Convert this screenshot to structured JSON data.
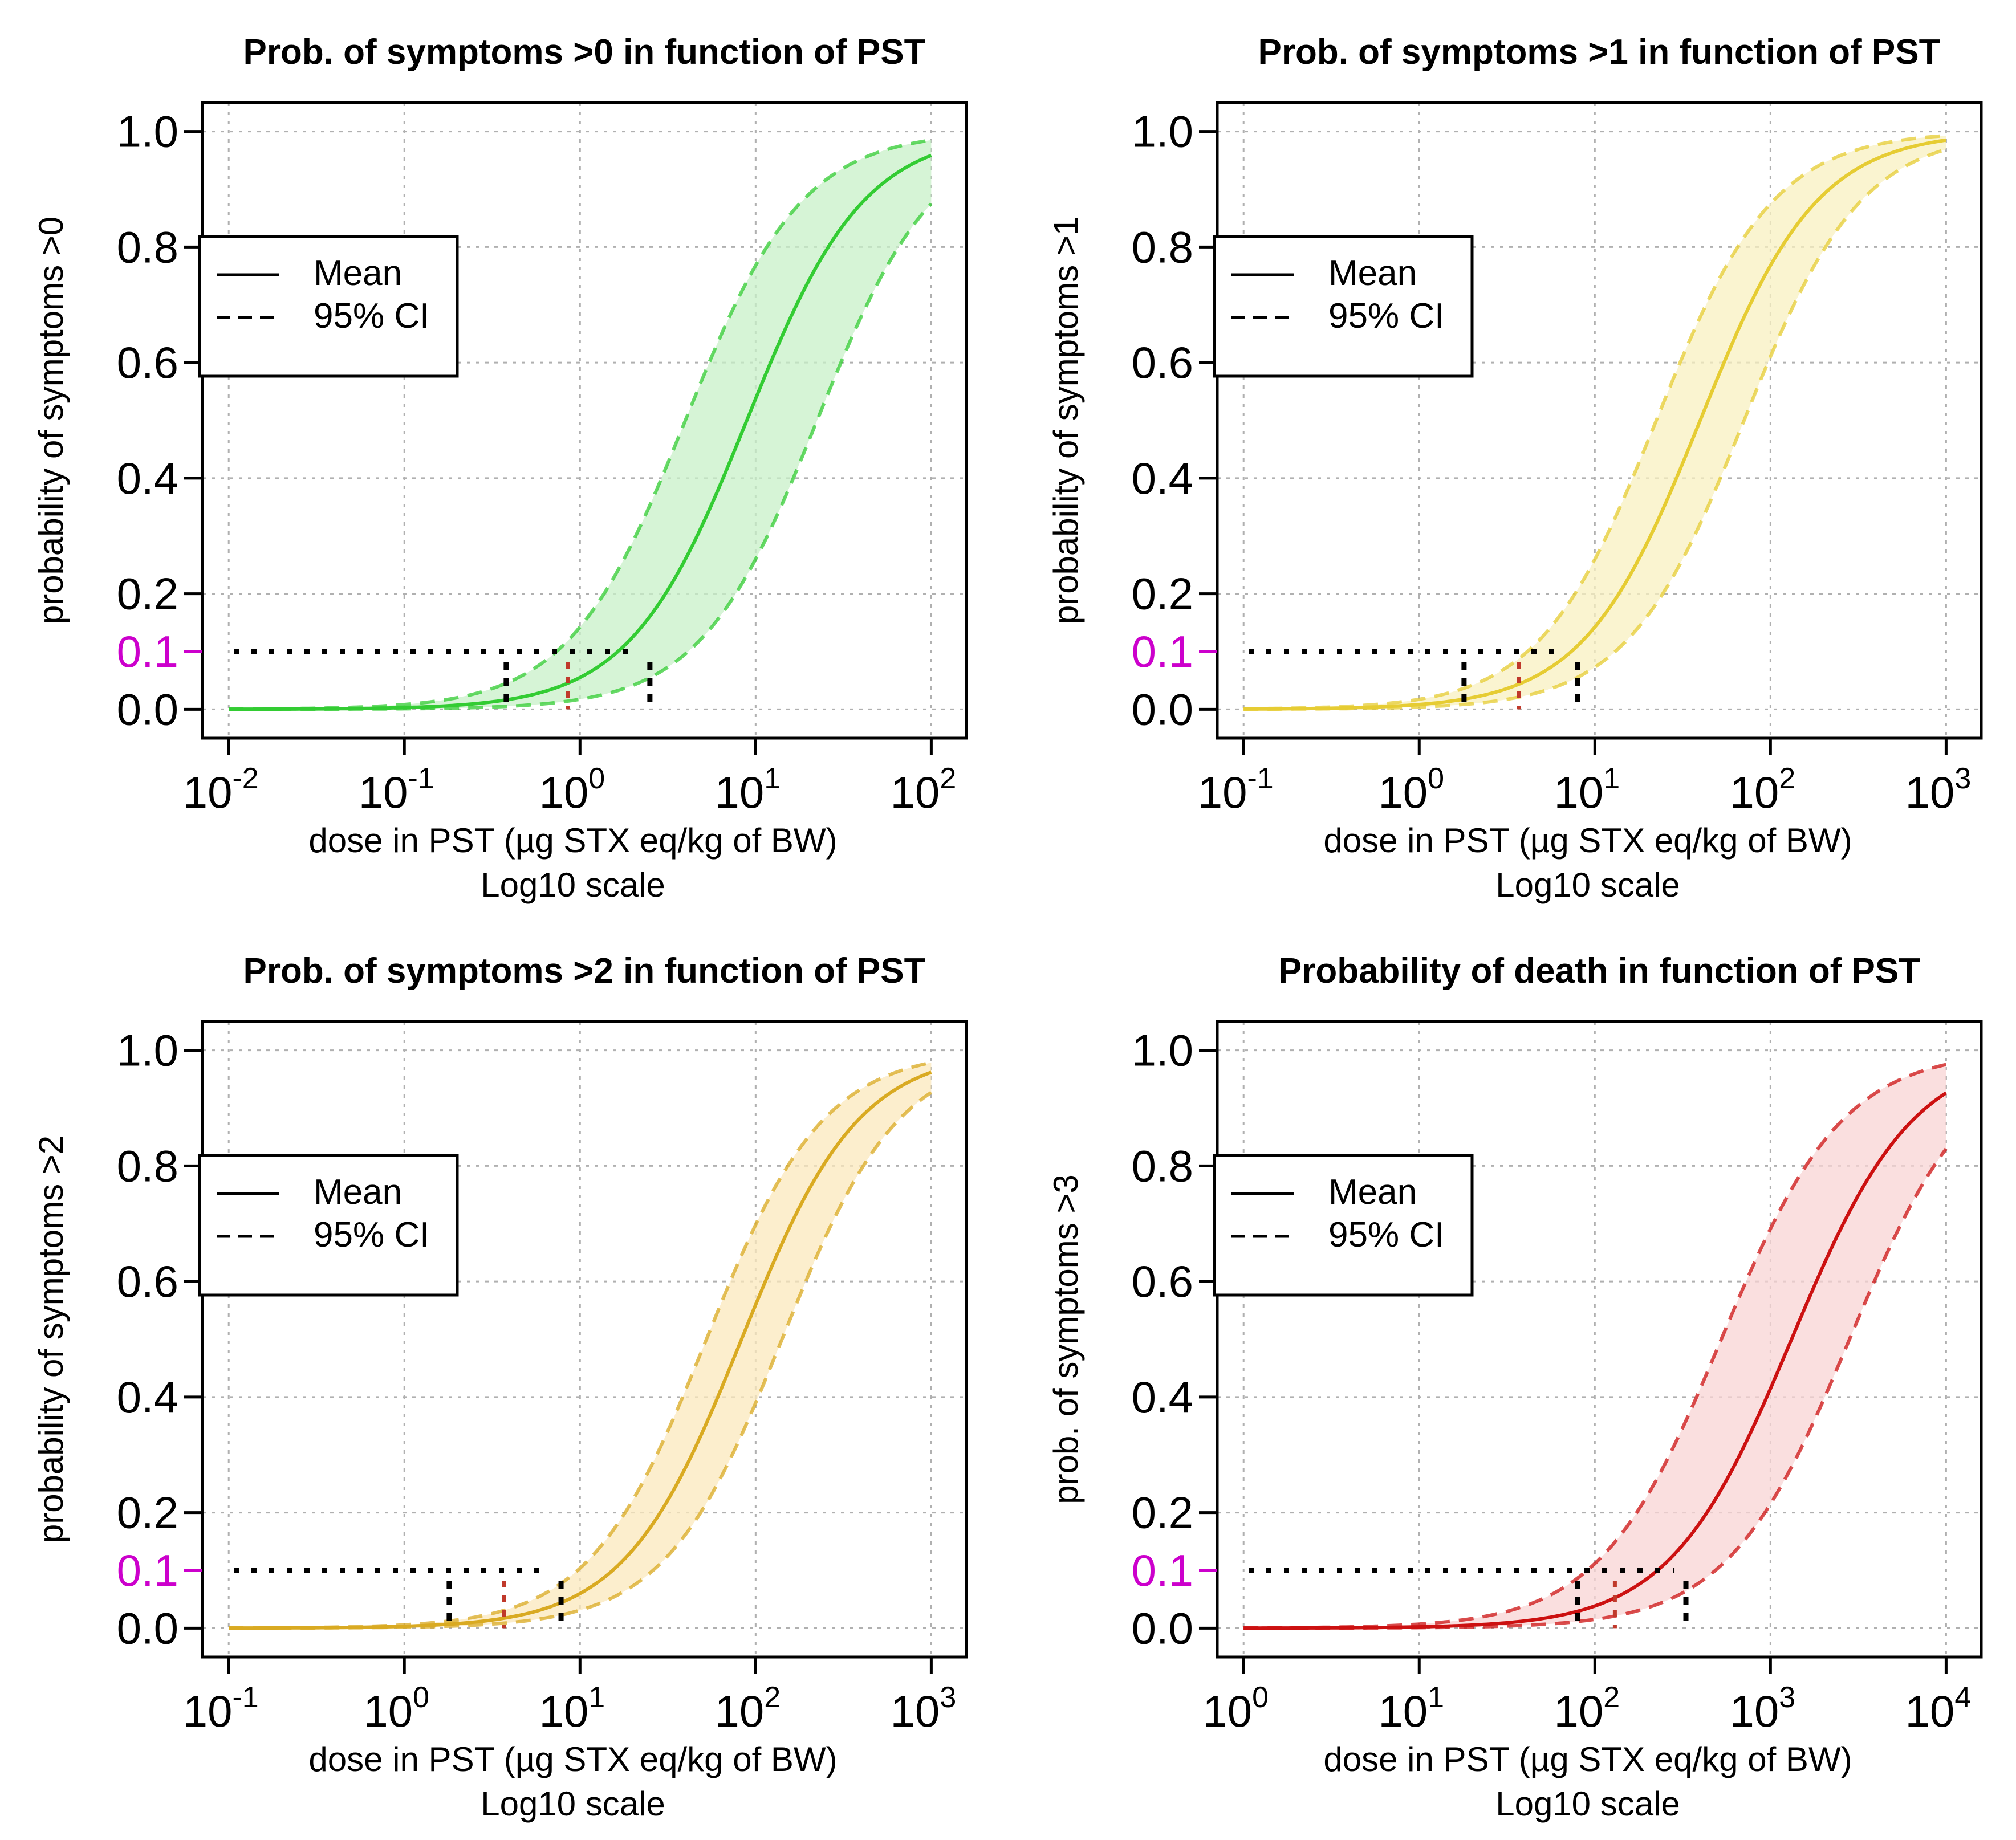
{
  "figure": {
    "layout": "2x2 grid"
  },
  "chart_data": [
    {
      "type": "line",
      "title": "Prob. of symptoms >0 in function of PST",
      "xlabel": "dose in PST (µg STX eq/kg of BW)",
      "xlabel2": "Log10 scale",
      "ylabel": "probability of symptoms >0",
      "xscale": "log10",
      "xlim_log10": [
        -2.15,
        2.2
      ],
      "ylim": [
        -0.05,
        1.05
      ],
      "x_tick_exponents": [
        -2,
        -1,
        0,
        1,
        2
      ],
      "y_ticks": [
        "0.0",
        "0.1",
        "0.2",
        "0.4",
        "0.6",
        "0.8",
        "1.0"
      ],
      "highlight_tick": "0.1",
      "highlight_color": "#cc00cc",
      "grid": true,
      "color": "#33cc33",
      "band_color": "#c8f0c8",
      "mean_curve": {
        "log10_dose_at_p50": 0.95,
        "log10_slope": 1.3
      },
      "ci_lower_curve": {
        "log10_dose_at_p50": 1.35,
        "log10_slope": 1.3
      },
      "ci_upper_curve": {
        "log10_dose_at_p50": 0.6,
        "log10_slope": 1.3
      },
      "threshold_p": 0.1,
      "threshold_doses": {
        "lower_ci": 0.38,
        "mean": 0.85,
        "upper_ci": 2.5
      },
      "legend": {
        "position": "left",
        "entries": [
          {
            "label": "Mean",
            "style": "solid"
          },
          {
            "label": "95% CI",
            "style": "dashed"
          }
        ]
      }
    },
    {
      "type": "line",
      "title": "Prob. of symptoms >1 in function of PST",
      "xlabel": "dose in PST (µg STX eq/kg of BW)",
      "xlabel2": "Log10 scale",
      "ylabel": "probability of symptoms >1",
      "xscale": "log10",
      "xlim_log10": [
        -1.15,
        3.2
      ],
      "ylim": [
        -0.05,
        1.05
      ],
      "x_tick_exponents": [
        -1,
        0,
        1,
        2,
        3
      ],
      "y_ticks": [
        "0.0",
        "0.1",
        "0.2",
        "0.4",
        "0.6",
        "0.8",
        "1.0"
      ],
      "highlight_tick": "0.1",
      "highlight_color": "#cc00cc",
      "grid": true,
      "color": "#e6cc33",
      "band_color": "#f8f0c0",
      "mean_curve": {
        "log10_dose_at_p50": 1.6,
        "log10_slope": 1.3
      },
      "ci_lower_curve": {
        "log10_dose_at_p50": 1.85,
        "log10_slope": 1.3
      },
      "ci_upper_curve": {
        "log10_dose_at_p50": 1.35,
        "log10_slope": 1.3
      },
      "threshold_p": 0.1,
      "threshold_doses": {
        "lower_ci": 1.8,
        "mean": 3.7,
        "upper_ci": 8.0
      },
      "legend": {
        "position": "left",
        "entries": [
          {
            "label": "Mean",
            "style": "solid"
          },
          {
            "label": "95% CI",
            "style": "dashed"
          }
        ]
      }
    },
    {
      "type": "line",
      "title": "Prob. of symptoms >2 in function of PST",
      "xlabel": "dose in PST (µg STX eq/kg of BW)",
      "xlabel2": "Log10 scale",
      "ylabel": "probability of symptoms >2",
      "xscale": "log10",
      "xlim_log10": [
        -1.15,
        3.2
      ],
      "ylim": [
        -0.05,
        1.05
      ],
      "x_tick_exponents": [
        -1,
        0,
        1,
        2,
        3
      ],
      "y_ticks": [
        "0.0",
        "0.1",
        "0.2",
        "0.4",
        "0.6",
        "0.8",
        "1.0"
      ],
      "highlight_tick": "0.1",
      "highlight_color": "#cc00cc",
      "grid": true,
      "color": "#d9aa22",
      "band_color": "#fbe8bc",
      "mean_curve": {
        "log10_dose_at_p50": 1.92,
        "log10_slope": 1.3
      },
      "ci_lower_curve": {
        "log10_dose_at_p50": 2.15,
        "log10_slope": 1.3
      },
      "ci_upper_curve": {
        "log10_dose_at_p50": 1.72,
        "log10_slope": 1.3
      },
      "threshold_p": 0.1,
      "threshold_doses": {
        "lower_ci": 1.8,
        "mean": 3.7,
        "upper_ci": 7.8
      },
      "legend": {
        "position": "left",
        "entries": [
          {
            "label": "Mean",
            "style": "solid"
          },
          {
            "label": "95% CI",
            "style": "dashed"
          }
        ]
      }
    },
    {
      "type": "line",
      "title": "Probability of death in function of PST",
      "xlabel": "dose in PST (µg STX eq/kg of BW)",
      "xlabel2": "Log10 scale",
      "ylabel": "prob. of symptoms >3",
      "xscale": "log10",
      "xlim_log10": [
        -0.15,
        4.2
      ],
      "ylim": [
        -0.05,
        1.05
      ],
      "x_tick_exponents": [
        0,
        1,
        2,
        3,
        4
      ],
      "y_ticks": [
        "0.0",
        "0.1",
        "0.2",
        "0.4",
        "0.6",
        "0.8",
        "1.0"
      ],
      "highlight_tick": "0.1",
      "highlight_color": "#cc00cc",
      "grid": true,
      "color": "#cc1111",
      "band_color": "#f8d4d4",
      "mean_curve": {
        "log10_dose_at_p50": 3.12,
        "log10_slope": 1.25
      },
      "ci_lower_curve": {
        "log10_dose_at_p50": 3.45,
        "log10_slope": 1.25
      },
      "ci_upper_curve": {
        "log10_dose_at_p50": 2.72,
        "log10_slope": 1.25
      },
      "threshold_p": 0.1,
      "threshold_doses": {
        "lower_ci": 80,
        "mean": 130,
        "upper_ci": 330
      },
      "legend": {
        "position": "left",
        "entries": [
          {
            "label": "Mean",
            "style": "solid"
          },
          {
            "label": "95% CI",
            "style": "dashed"
          }
        ]
      }
    }
  ]
}
